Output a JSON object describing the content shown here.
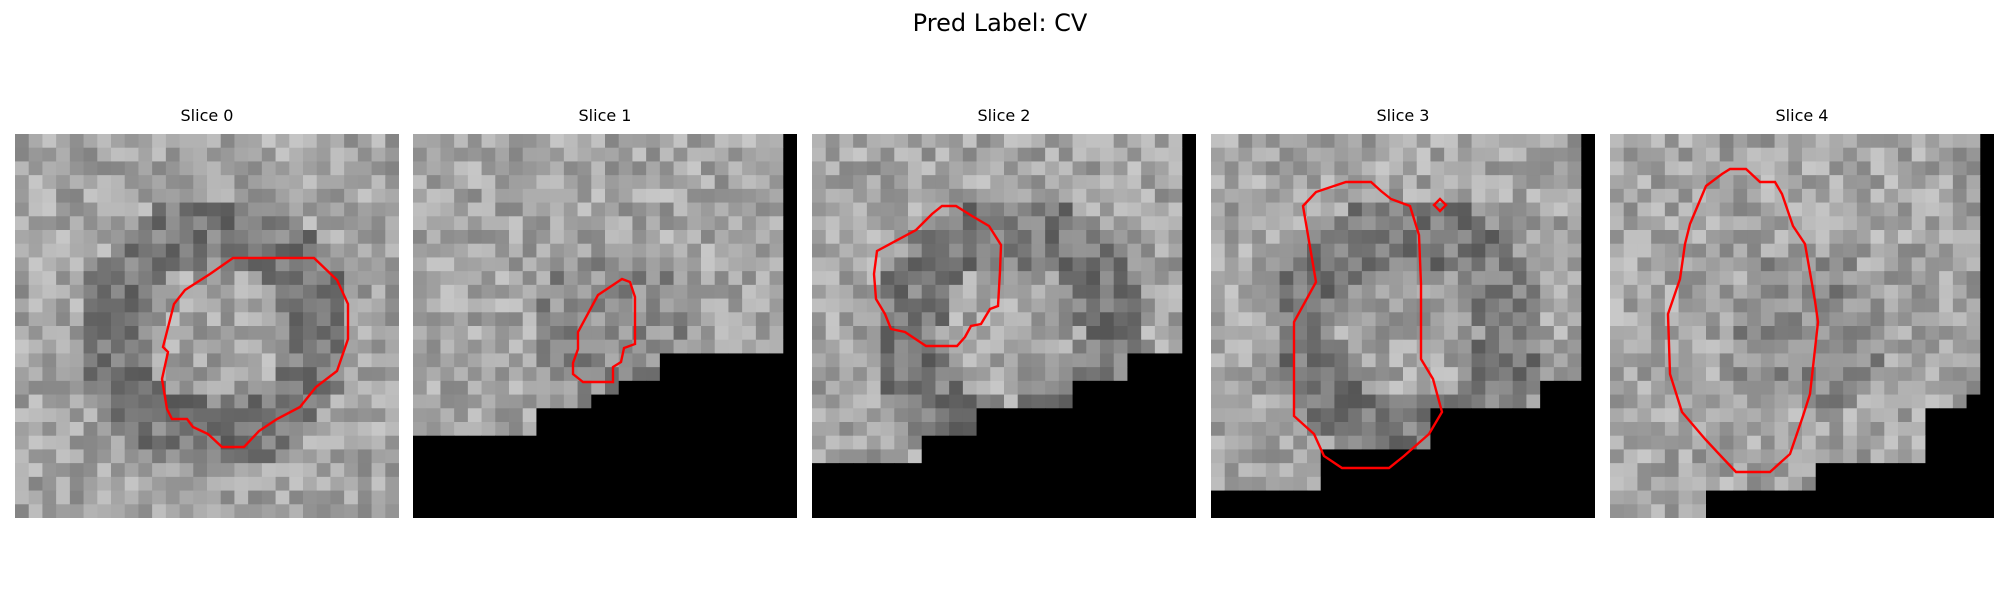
{
  "figure": {
    "title": "Pred Label: CV"
  },
  "panels": [
    {
      "title": "Slice 0"
    },
    {
      "title": "Slice 1"
    },
    {
      "title": "Slice 2"
    },
    {
      "title": "Slice 3"
    },
    {
      "title": "Slice 4"
    }
  ],
  "colors": {
    "contour": "#ff0000",
    "masked_region": "#000000",
    "background": "#ffffff"
  }
}
